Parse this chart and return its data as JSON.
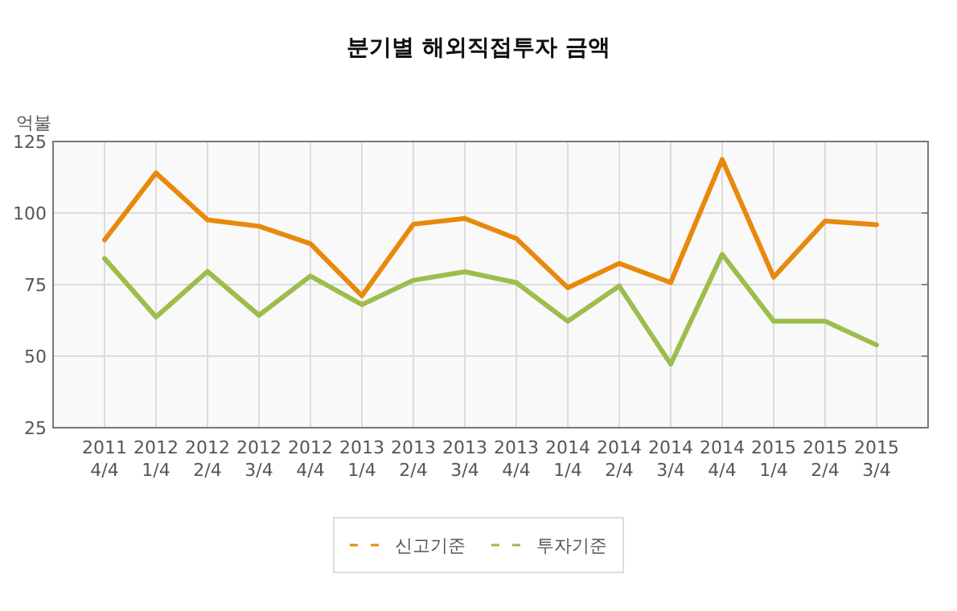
{
  "chart_data": {
    "type": "line",
    "title": "분기별 해외직접투자 금액",
    "ylabel": "억불",
    "categories": [
      "2011 4/4",
      "2012 1/4",
      "2012 2/4",
      "2012 3/4",
      "2012 4/4",
      "2013 1/4",
      "2013 2/4",
      "2013 3/4",
      "2013 4/4",
      "2014 1/4",
      "2014 2/4",
      "2014 3/4",
      "2014 4/4",
      "2015 1/4",
      "2015 2/4",
      "2015 3/4"
    ],
    "series": [
      {
        "name": "신고기준",
        "color": "#e8890c",
        "values": [
          90.6,
          114,
          97.6,
          95.4,
          89.3,
          71.1,
          96.1,
          98.1,
          91.1,
          73.9,
          82.4,
          75.7,
          118.7,
          77.6,
          97.2,
          95.9
        ]
      },
      {
        "name": "투자기준",
        "color": "#9dbd4c",
        "values": [
          84.1,
          63.7,
          79.6,
          64.3,
          78,
          68,
          76.5,
          79.5,
          75.7,
          62.2,
          74.5,
          47.2,
          85.6,
          62.2,
          62.2,
          53.9
        ]
      }
    ],
    "ylim": [
      25,
      125
    ],
    "yticks": [
      25,
      50,
      75,
      100,
      125
    ],
    "grid": true,
    "legend": "bottom",
    "line_style": "solid",
    "marker": "none"
  }
}
